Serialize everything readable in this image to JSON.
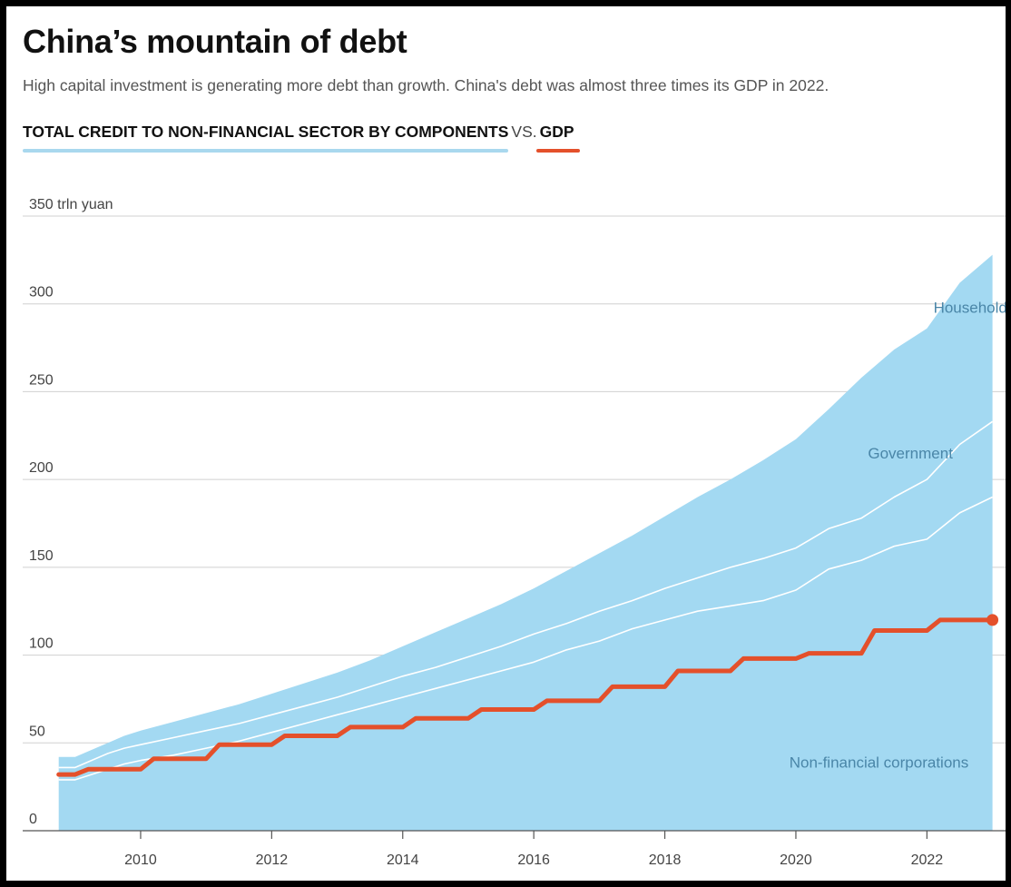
{
  "title": "China’s mountain of debt",
  "subtitle": "High capital investment is generating more debt than growth. China's debt was almost three times its GDP in 2022.",
  "legend": {
    "credit_label": "TOTAL CREDIT TO NON-FINANCIAL SECTOR BY COMPONENTS",
    "vs_label": "VS.",
    "gdp_label": "GDP"
  },
  "colors": {
    "area_fill": "#a3d9f2",
    "separator": "#ffffff",
    "gdp_line": "#e4502b",
    "legend_credit_underline": "#a9d8ee",
    "gridline": "#d0d0d0",
    "axis": "#555555",
    "area_label": "#4a86a8"
  },
  "chart_data": {
    "type": "area",
    "stacked": true,
    "y_unit": "trln yuan",
    "ylim": [
      0,
      350
    ],
    "yticks": [
      0,
      50,
      100,
      150,
      200,
      250,
      300,
      350
    ],
    "ytick_labels": [
      "0",
      "50",
      "100",
      "150",
      "200",
      "250",
      "300",
      "350 trln yuan"
    ],
    "xlim": [
      2008.2,
      2023.2
    ],
    "xticks": [
      2010,
      2012,
      2014,
      2016,
      2018,
      2020,
      2022
    ],
    "xtick_labels": [
      "2010",
      "2012",
      "2014",
      "2016",
      "2018",
      "2020",
      "2022"
    ],
    "grid": "horizontal",
    "area_labels": [
      "Households",
      "Government",
      "Non-financial corporations"
    ],
    "x": [
      2008.75,
      2009.0,
      2009.25,
      2009.5,
      2009.75,
      2010.0,
      2010.5,
      2011.0,
      2011.5,
      2012.0,
      2012.5,
      2013.0,
      2013.5,
      2014.0,
      2014.5,
      2015.0,
      2015.5,
      2016.0,
      2016.5,
      2017.0,
      2017.5,
      2018.0,
      2018.5,
      2019.0,
      2019.5,
      2020.0,
      2020.5,
      2021.0,
      2021.5,
      2022.0,
      2022.5,
      2023.0
    ],
    "series": [
      {
        "name": "Non-financial corporations",
        "values": [
          29,
          29,
          32,
          35,
          38,
          40,
          43,
          47,
          51,
          56,
          61,
          66,
          71,
          76,
          81,
          86,
          91,
          96,
          103,
          108,
          115,
          120,
          125,
          128,
          131,
          137,
          149,
          154,
          162,
          166,
          181,
          190
        ]
      },
      {
        "name": "Government",
        "values": [
          36,
          36,
          40,
          44,
          47,
          49,
          53,
          57,
          61,
          66,
          71,
          76,
          82,
          88,
          93,
          99,
          105,
          112,
          118,
          125,
          131,
          138,
          144,
          150,
          155,
          161,
          172,
          178,
          190,
          200,
          220,
          233
        ]
      },
      {
        "name": "Households",
        "values": [
          42,
          42,
          46,
          50,
          54,
          57,
          62,
          67,
          72,
          78,
          84,
          90,
          97,
          105,
          113,
          121,
          129,
          138,
          148,
          158,
          168,
          179,
          190,
          200,
          211,
          223,
          240,
          258,
          274,
          286,
          312,
          328
        ]
      }
    ],
    "gdp": {
      "name": "GDP",
      "x": [
        2008.75,
        2009.0,
        2009.2,
        2010.0,
        2010.2,
        2011.0,
        2011.2,
        2012.0,
        2012.2,
        2013.0,
        2013.2,
        2014.0,
        2014.2,
        2015.0,
        2015.2,
        2016.0,
        2016.2,
        2017.0,
        2017.2,
        2018.0,
        2018.2,
        2019.0,
        2019.2,
        2020.0,
        2020.2,
        2021.0,
        2021.2,
        2022.0,
        2022.2,
        2023.0
      ],
      "values": [
        32,
        32,
        35,
        35,
        41,
        41,
        49,
        49,
        54,
        54,
        59,
        59,
        64,
        64,
        69,
        69,
        74,
        74,
        82,
        82,
        91,
        91,
        98,
        98,
        101,
        101,
        114,
        114,
        120,
        120
      ]
    }
  }
}
